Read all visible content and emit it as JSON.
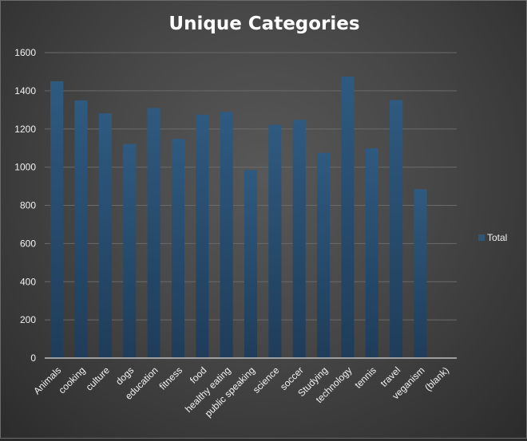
{
  "chart_data": {
    "type": "bar",
    "title": "Unique Categories",
    "xlabel": "",
    "ylabel": "",
    "categories": [
      "Animals",
      "cooking",
      "culture",
      "dogs",
      "education",
      "fitness",
      "food",
      "healthy eating",
      "public speaking",
      "science",
      "soccer",
      "Studying",
      "technology",
      "tennis",
      "travel",
      "veganism",
      "(blank)"
    ],
    "series": [
      {
        "name": "Total",
        "values": [
          1450,
          1350,
          1282,
          1122,
          1310,
          1148,
          1275,
          1290,
          985,
          1222,
          1248,
          1075,
          1475,
          1098,
          1352,
          885,
          0
        ]
      }
    ],
    "ylim": [
      0,
      1600
    ],
    "yticks": [
      0,
      200,
      400,
      600,
      800,
      1000,
      1200,
      1400,
      1600
    ],
    "grid": true,
    "legend_position": "right",
    "colors": {
      "bar_top": "#2f5a80",
      "bar_bottom": "#1f3d5a",
      "grid": "#6a6a6a",
      "axis": "#bfbfbf",
      "legend_swatch": "#2e5679"
    }
  }
}
